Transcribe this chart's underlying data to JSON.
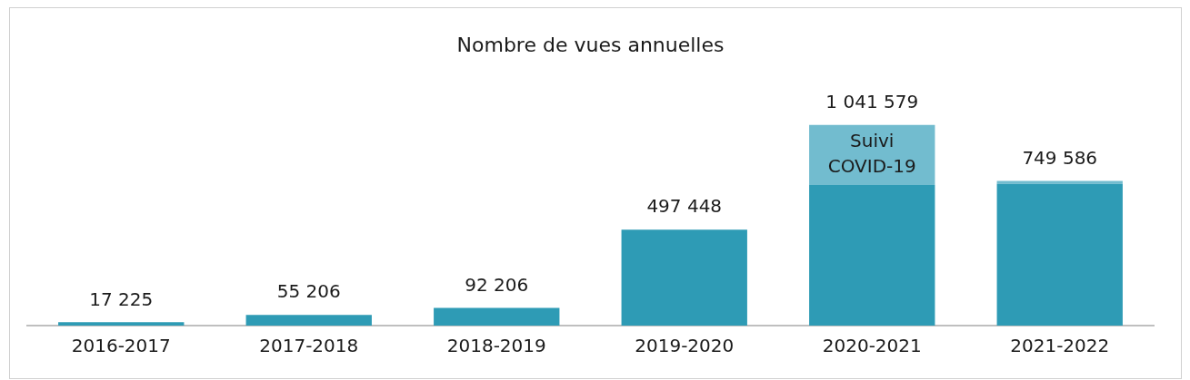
{
  "chart_data": {
    "type": "bar",
    "title": "Nombre de vues annuelles",
    "stacked": true,
    "categories": [
      "2016-2017",
      "2017-2018",
      "2018-2019",
      "2019-2020",
      "2020-2021",
      "2021-2022"
    ],
    "series": [
      {
        "color": "#2e9bb5",
        "values": [
          17225,
          55206,
          92206,
          497448,
          729000,
          735000
        ],
        "value_labels": [
          "17 225",
          "55 206",
          "92 206",
          "497 448",
          null,
          null
        ]
      },
      {
        "name": "Suivi COVID-19",
        "color": "#72bccf",
        "values": [
          null,
          null,
          null,
          null,
          312579,
          14586
        ]
      }
    ],
    "totals": [
      null,
      null,
      null,
      null,
      "1 041 579",
      "749 586"
    ],
    "legend": false,
    "grid": false
  }
}
